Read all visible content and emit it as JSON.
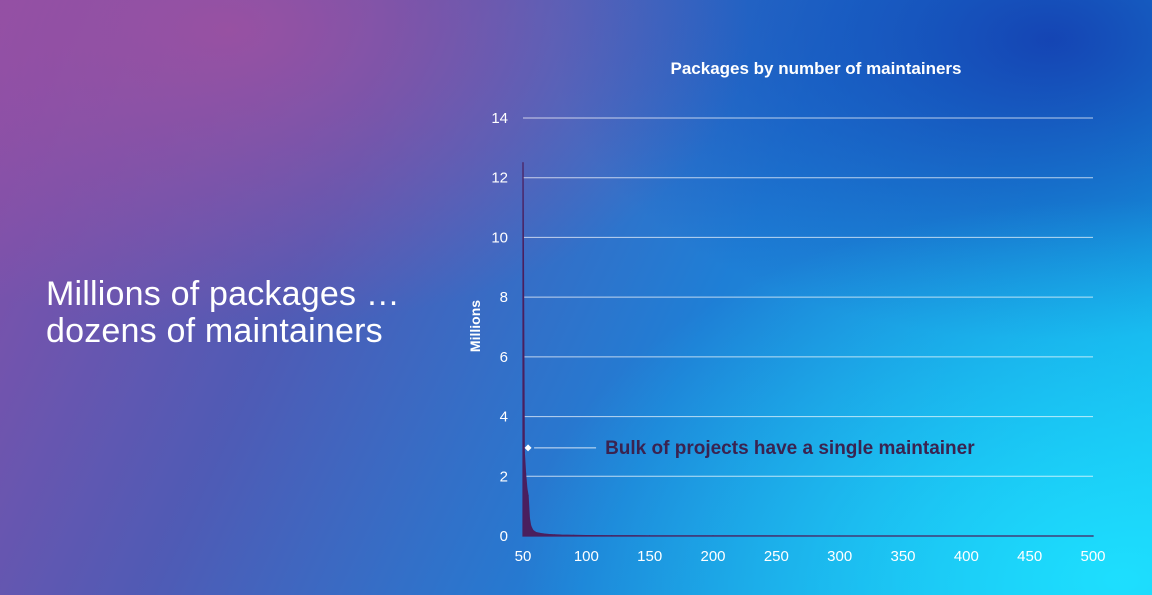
{
  "slide": {
    "title_line1": "Millions of packages …",
    "title_line2": "dozens of maintainers"
  },
  "chart_data": {
    "type": "area",
    "title": "Packages by number of maintainers",
    "xlabel": "",
    "ylabel": "Millions",
    "xlim": [
      50,
      500
    ],
    "ylim": [
      0,
      14
    ],
    "x_ticks": [
      "50",
      "100",
      "150",
      "200",
      "250",
      "300",
      "350",
      "400",
      "450",
      "500"
    ],
    "y_ticks": [
      "0",
      "2",
      "4",
      "6",
      "8",
      "10",
      "12",
      "14"
    ],
    "grid": true,
    "legend": "none",
    "series": [
      {
        "color": "#4a1f5e",
        "x": [
          50,
          51,
          52,
          53,
          54,
          55,
          56,
          57,
          58,
          60,
          63,
          66,
          70,
          75,
          80,
          90,
          100,
          120,
          150,
          200,
          300,
          500
        ],
        "y": [
          12.5,
          2.8,
          2.1,
          1.6,
          1.35,
          0.6,
          0.35,
          0.25,
          0.18,
          0.12,
          0.09,
          0.07,
          0.05,
          0.04,
          0.03,
          0.02,
          0.015,
          0.01,
          0.006,
          0.004,
          0.002,
          0.001
        ]
      }
    ],
    "annotation": {
      "text": "Bulk of projects have a single maintainer",
      "x": 54,
      "y": 2.95,
      "color": "#3a2350"
    },
    "colors": {
      "text": "#ffffff",
      "grid": "#ffffff"
    }
  }
}
